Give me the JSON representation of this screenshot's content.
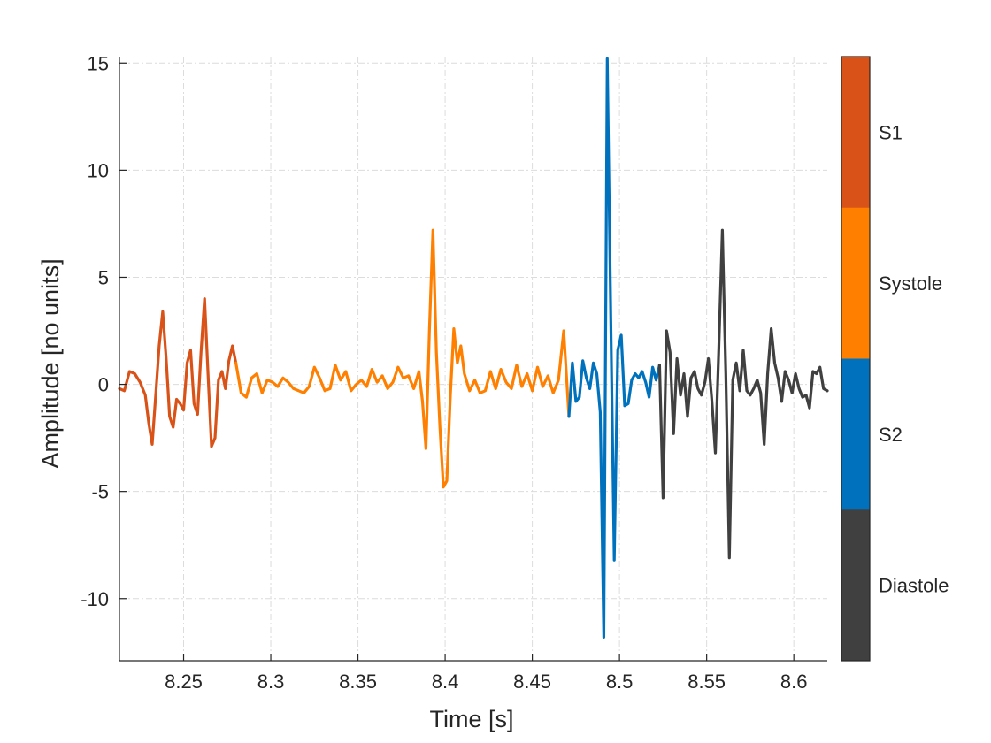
{
  "chart_data": {
    "type": "line",
    "xlabel": "Time [s]",
    "ylabel": "Amplitude [no units]",
    "xlim": [
      8.2132,
      8.6192
    ],
    "ylim": [
      -12.9,
      15.3
    ],
    "xticks": [
      8.25,
      8.3,
      8.35,
      8.4,
      8.45,
      8.5,
      8.55,
      8.6
    ],
    "xtick_labels": [
      "8.25",
      "8.3",
      "8.35",
      "8.4",
      "8.45",
      "8.5",
      "8.55",
      "8.6"
    ],
    "yticks": [
      -10,
      -5,
      0,
      5,
      10,
      15
    ],
    "ytick_labels": [
      "-10",
      "-5",
      "0",
      "5",
      "10",
      "15"
    ],
    "grid": true,
    "colorbar": {
      "categories": [
        "S1",
        "Systole",
        "S2",
        "Diastole"
      ],
      "colors": [
        "#d95319",
        "#ff8000",
        "#0072bd",
        "#404040"
      ]
    },
    "series": [
      {
        "name": "S1",
        "color": "#d95319",
        "x": [
          8.2132,
          8.216,
          8.219,
          8.222,
          8.225,
          8.228,
          8.23,
          8.232,
          8.234,
          8.236,
          8.238,
          8.24,
          8.242,
          8.244,
          8.246,
          8.248,
          8.25,
          8.252,
          8.254,
          8.256,
          8.258,
          8.26,
          8.262,
          8.264,
          8.266,
          8.268,
          8.27,
          8.272,
          8.274,
          8.276,
          8.278,
          8.28
        ],
        "y": [
          -0.2,
          -0.3,
          0.6,
          0.5,
          0.1,
          -0.5,
          -1.8,
          -2.8,
          -0.5,
          1.8,
          3.4,
          1.2,
          -1.5,
          -2.0,
          -0.7,
          -0.9,
          -1.2,
          1.0,
          1.6,
          -0.9,
          -1.4,
          1.5,
          4.0,
          0.5,
          -2.9,
          -2.5,
          0.2,
          0.6,
          -0.2,
          1.1,
          1.8,
          1.0
        ]
      },
      {
        "name": "Systole",
        "color": "#ff8000",
        "x": [
          8.28,
          8.283,
          8.286,
          8.289,
          8.292,
          8.295,
          8.298,
          8.301,
          8.304,
          8.307,
          8.31,
          8.313,
          8.316,
          8.319,
          8.322,
          8.325,
          8.328,
          8.331,
          8.334,
          8.337,
          8.34,
          8.343,
          8.346,
          8.349,
          8.352,
          8.355,
          8.358,
          8.361,
          8.364,
          8.367,
          8.37,
          8.373,
          8.376,
          8.379,
          8.382,
          8.385,
          8.387,
          8.389,
          8.391,
          8.393,
          8.395,
          8.397,
          8.399,
          8.401,
          8.403,
          8.405,
          8.407,
          8.409,
          8.411,
          8.414,
          8.417,
          8.42,
          8.423,
          8.426,
          8.429,
          8.432,
          8.435,
          8.438,
          8.441,
          8.444,
          8.447,
          8.45,
          8.453,
          8.456,
          8.459,
          8.462,
          8.465,
          8.468,
          8.471
        ],
        "y": [
          1.0,
          -0.4,
          -0.6,
          0.3,
          0.5,
          -0.4,
          0.2,
          0.1,
          -0.1,
          0.3,
          0.1,
          -0.2,
          -0.3,
          -0.4,
          -0.1,
          0.8,
          0.3,
          -0.3,
          -0.2,
          0.9,
          0.2,
          0.6,
          -0.3,
          0.0,
          0.2,
          -0.1,
          0.7,
          0.1,
          0.4,
          -0.2,
          0.1,
          0.8,
          0.3,
          0.4,
          -0.2,
          0.6,
          -0.8,
          -3.0,
          2.5,
          7.2,
          1.5,
          -2.0,
          -4.8,
          -4.5,
          -0.5,
          2.6,
          1.0,
          1.8,
          0.5,
          -0.3,
          0.2,
          -0.4,
          -0.3,
          0.6,
          -0.2,
          0.7,
          0.1,
          -0.2,
          0.9,
          -0.1,
          0.5,
          -0.3,
          0.8,
          -0.1,
          0.4,
          -0.4,
          0.2,
          2.5,
          -1.5
        ]
      },
      {
        "name": "S2",
        "color": "#0072bd",
        "x": [
          8.471,
          8.473,
          8.475,
          8.477,
          8.479,
          8.481,
          8.483,
          8.485,
          8.487,
          8.489,
          8.491,
          8.493,
          8.495,
          8.497,
          8.499,
          8.501,
          8.503,
          8.505,
          8.507,
          8.509,
          8.511,
          8.513,
          8.515,
          8.517,
          8.519,
          8.521,
          8.523
        ],
        "y": [
          -1.5,
          1.0,
          -0.8,
          -0.6,
          1.1,
          0.3,
          -0.2,
          1.0,
          0.5,
          -1.3,
          -11.8,
          15.2,
          3.0,
          -8.2,
          1.6,
          2.3,
          -1.0,
          -0.9,
          0.2,
          0.5,
          0.3,
          0.6,
          0.1,
          -0.6,
          0.8,
          0.2,
          0.9
        ]
      },
      {
        "name": "Diastole",
        "color": "#404040",
        "x": [
          8.523,
          8.525,
          8.527,
          8.529,
          8.531,
          8.533,
          8.535,
          8.537,
          8.539,
          8.541,
          8.543,
          8.545,
          8.547,
          8.549,
          8.551,
          8.553,
          8.555,
          8.557,
          8.559,
          8.561,
          8.563,
          8.565,
          8.567,
          8.569,
          8.571,
          8.573,
          8.575,
          8.577,
          8.579,
          8.581,
          8.583,
          8.585,
          8.587,
          8.589,
          8.591,
          8.593,
          8.595,
          8.597,
          8.599,
          8.601,
          8.603,
          8.605,
          8.607,
          8.609,
          8.611,
          8.613,
          8.615,
          8.617,
          8.6192
        ],
        "y": [
          0.9,
          -5.3,
          2.5,
          1.5,
          -2.3,
          1.2,
          -0.5,
          0.5,
          -1.5,
          0.3,
          0.6,
          -0.2,
          -0.5,
          0.1,
          1.2,
          -0.8,
          -3.2,
          1.7,
          7.2,
          0.5,
          -8.1,
          0.2,
          1.0,
          -0.3,
          1.6,
          -0.3,
          -0.5,
          -0.2,
          0.2,
          -0.4,
          -2.8,
          0.5,
          2.6,
          1.0,
          0.3,
          -0.8,
          0.6,
          0.2,
          -0.4,
          0.5,
          -0.2,
          -0.6,
          -0.5,
          -1.1,
          0.6,
          0.5,
          0.8,
          -0.2,
          -0.3
        ]
      }
    ]
  }
}
